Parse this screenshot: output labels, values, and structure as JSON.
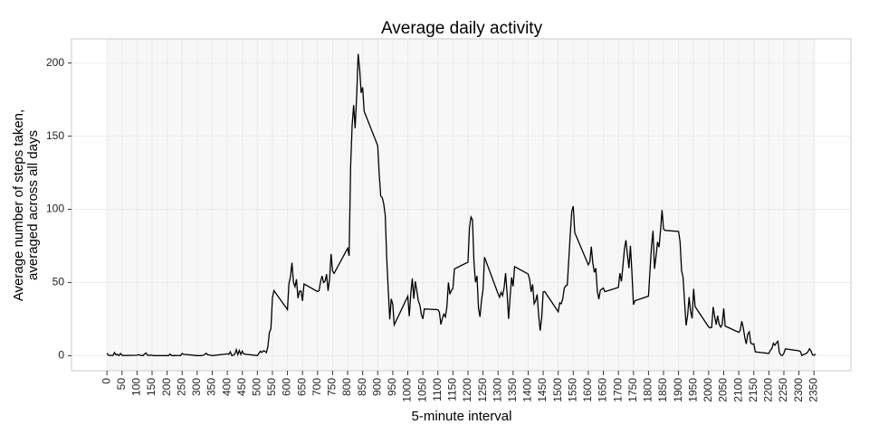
{
  "chart_data": {
    "type": "line",
    "title": "Average daily activity",
    "x_label": "5-minute interval",
    "y_label": [
      "Average number of steps taken,",
      "averaged across all days"
    ],
    "color": "#000000",
    "grid": true,
    "xlim": [
      -117.75,
      2472.75
    ],
    "ylim": [
      -10.3,
      216.5
    ],
    "xticks": [
      0,
      50,
      100,
      150,
      200,
      250,
      300,
      350,
      400,
      450,
      500,
      550,
      600,
      650,
      700,
      750,
      800,
      850,
      900,
      950,
      1000,
      1050,
      1100,
      1150,
      1200,
      1250,
      1300,
      1350,
      1400,
      1450,
      1500,
      1550,
      1600,
      1650,
      1700,
      1750,
      1800,
      1850,
      1900,
      1950,
      2000,
      2050,
      2100,
      2150,
      2200,
      2250,
      2300,
      2350
    ],
    "yticks": [
      0,
      50,
      100,
      150,
      200
    ],
    "x": [
      0,
      5,
      10,
      15,
      20,
      25,
      30,
      35,
      40,
      45,
      50,
      55,
      100,
      105,
      110,
      115,
      120,
      125,
      130,
      135,
      140,
      145,
      150,
      155,
      200,
      205,
      210,
      215,
      220,
      225,
      230,
      235,
      240,
      245,
      250,
      255,
      300,
      310,
      320,
      330,
      335,
      340,
      350,
      400,
      405,
      410,
      415,
      420,
      425,
      430,
      435,
      440,
      445,
      450,
      455,
      500,
      505,
      510,
      515,
      520,
      525,
      530,
      535,
      540,
      545,
      550,
      555,
      600,
      605,
      610,
      615,
      620,
      625,
      630,
      635,
      640,
      645,
      650,
      655,
      700,
      705,
      710,
      715,
      720,
      725,
      730,
      735,
      740,
      745,
      750,
      755,
      800,
      805,
      810,
      815,
      820,
      825,
      830,
      835,
      840,
      845,
      850,
      855,
      900,
      905,
      910,
      915,
      920,
      925,
      930,
      935,
      940,
      945,
      950,
      955,
      1000,
      1005,
      1010,
      1015,
      1020,
      1025,
      1030,
      1035,
      1040,
      1045,
      1050,
      1055,
      1100,
      1105,
      1110,
      1115,
      1120,
      1125,
      1130,
      1135,
      1140,
      1145,
      1150,
      1155,
      1200,
      1205,
      1210,
      1215,
      1220,
      1225,
      1230,
      1235,
      1240,
      1245,
      1250,
      1255,
      1300,
      1305,
      1310,
      1315,
      1320,
      1325,
      1330,
      1335,
      1340,
      1345,
      1350,
      1355,
      1400,
      1405,
      1410,
      1415,
      1420,
      1425,
      1430,
      1435,
      1440,
      1445,
      1450,
      1455,
      1500,
      1505,
      1510,
      1515,
      1520,
      1525,
      1530,
      1535,
      1540,
      1545,
      1550,
      1555,
      1600,
      1605,
      1610,
      1615,
      1620,
      1625,
      1630,
      1635,
      1640,
      1645,
      1650,
      1655,
      1700,
      1705,
      1710,
      1715,
      1720,
      1725,
      1730,
      1735,
      1740,
      1745,
      1750,
      1755,
      1800,
      1805,
      1810,
      1815,
      1820,
      1825,
      1830,
      1835,
      1840,
      1845,
      1850,
      1855,
      1900,
      1905,
      1910,
      1915,
      1920,
      1925,
      1930,
      1935,
      1940,
      1945,
      1950,
      1955,
      2000,
      2005,
      2010,
      2015,
      2020,
      2025,
      2030,
      2035,
      2040,
      2045,
      2050,
      2055,
      2100,
      2105,
      2110,
      2115,
      2120,
      2125,
      2130,
      2135,
      2140,
      2145,
      2150,
      2155,
      2200,
      2205,
      2210,
      2215,
      2220,
      2225,
      2230,
      2235,
      2240,
      2245,
      2250,
      2255,
      2300,
      2305,
      2310,
      2315,
      2320,
      2325,
      2330,
      2335,
      2340,
      2345,
      2350,
      2355
    ],
    "values": [
      1.7,
      0.3,
      0.1,
      0.2,
      0.1,
      2.1,
      0.5,
      0.9,
      0,
      1.5,
      0.3,
      0.1,
      0.3,
      0.7,
      0.2,
      0.3,
      0,
      1.1,
      1.8,
      0.2,
      0.2,
      0.4,
      0.3,
      0,
      0,
      0,
      1.1,
      0,
      0,
      0.1,
      0,
      0.2,
      0,
      0,
      1.5,
      0.9,
      0,
      0,
      0.2,
      1.6,
      0.6,
      0.5,
      0,
      1.2,
      0.9,
      2.6,
      0,
      0.3,
      1.1,
      4.1,
      0.7,
      3.5,
      0.8,
      3.1,
      1.1,
      0,
      1.5,
      3.0,
      2.2,
      3.3,
      3.0,
      2.1,
      6.1,
      16,
      18.3,
      39.5,
      44.5,
      31.5,
      49.3,
      53.8,
      63.5,
      50,
      47.1,
      52.2,
      39.3,
      44.0,
      44.2,
      37.4,
      49.0,
      43.8,
      44.4,
      50.5,
      54.5,
      49.9,
      50.9,
      55.7,
      44.3,
      52.3,
      69.5,
      57.8,
      56.2,
      73.4,
      68.2,
      129.4,
      157.5,
      171.2,
      155.4,
      177.3,
      206.2,
      195.9,
      179.6,
      183.4,
      167.0,
      143.5,
      124.0,
      109.1,
      108.1,
      103.7,
      96.0,
      66.2,
      45.2,
      24.8,
      38.8,
      35.0,
      21.1,
      40.6,
      27.0,
      42.4,
      52.7,
      38.9,
      50.8,
      44.3,
      37.4,
      34.7,
      28.3,
      25.1,
      31.9,
      31.4,
      29.7,
      21.3,
      25.5,
      28.4,
      26.5,
      33.4,
      50.0,
      42.0,
      44.6,
      46.0,
      59.3,
      63.9,
      87.7,
      94.8,
      92.8,
      63.4,
      50.2,
      54.5,
      32.4,
      26.5,
      37.7,
      45.1,
      67.3,
      42.3,
      39.9,
      43.3,
      41.0,
      46.2,
      56.4,
      42.8,
      25.1,
      40.0,
      53.5,
      47.3,
      60.8,
      55.8,
      52.0,
      43.6,
      48.7,
      35.5,
      37.5,
      41.8,
      27.5,
      17.1,
      26.1,
      43.6,
      43.8,
      30.0,
      36.1,
      35.5,
      38.8,
      46.0,
      47.8,
      48.1,
      65.3,
      82.9,
      98.7,
      102.1,
      84.0,
      62.1,
      64.1,
      74.5,
      63.2,
      56.9,
      59.8,
      43.9,
      38.6,
      44.7,
      45.5,
      46.2,
      43.7,
      46.6,
      56.3,
      50.7,
      61.2,
      72.7,
      78.9,
      68.9,
      59.7,
      75.1,
      56.5,
      34.8,
      37.5,
      40.7,
      58.0,
      74.7,
      85.3,
      59.3,
      67.8,
      77.7,
      74.2,
      85.3,
      99.5,
      86.6,
      85.6,
      84.9,
      77.8,
      58.0,
      53.4,
      36.3,
      20.7,
      27.4,
      40.0,
      30.2,
      25.5,
      45.7,
      33.5,
      19.6,
      19.0,
      19.3,
      33.3,
      26.8,
      21.2,
      27.3,
      21.3,
      19.5,
      21.3,
      32.3,
      20.2,
      15.9,
      17.2,
      23.5,
      19.2,
      12.5,
      8.0,
      14.7,
      16.3,
      8.7,
      7.8,
      8.1,
      2.6,
      1.5,
      3.7,
      4.8,
      8.5,
      7.1,
      8.7,
      9.8,
      2.2,
      0.3,
      0.1,
      1.6,
      4.6,
      3.3,
      2.8,
      0,
      0.8,
      1.0,
      1.6,
      2.6,
      4.7,
      3.3,
      0.6,
      0.2,
      1.1
    ]
  }
}
